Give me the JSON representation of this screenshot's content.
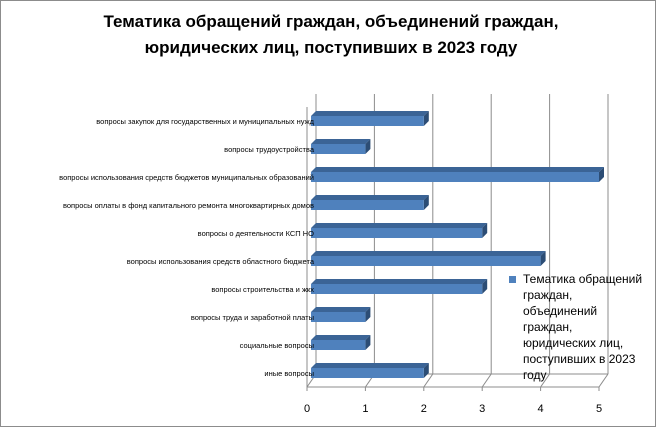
{
  "chart_data": {
    "type": "bar",
    "orientation": "horizontal",
    "title": "Тематика обращений граждан, объединений граждан,\nюридических лиц, поступивших в 2023 году",
    "categories": [
      "вопросы закупок для государственных и муниципальных нужд",
      "вопросы трудоустройства",
      "вопросы использования средств бюджетов муниципальных образований",
      "вопросы оплаты в фонд капитального ремонта многоквартирных домов",
      "вопросы о деятельности КСП НО",
      "вопросы использования средств областного бюджета",
      "вопросы  строительства  и жкх",
      "вопросы труда и заработной платы",
      "социальные вопросы",
      "иные вопросы"
    ],
    "series": [
      {
        "name": "Тематика обращений граждан, объединений граждан, юридических лиц, поступивших в 2023 году",
        "values": [
          2,
          1,
          5,
          2,
          3,
          4,
          3,
          1,
          1,
          2
        ],
        "color": "#4f81bd"
      }
    ],
    "x_ticks": [
      "0",
      "1",
      "2",
      "3",
      "4",
      "5"
    ],
    "xlim": [
      0,
      5
    ],
    "grid": true,
    "legend_position": "right"
  }
}
